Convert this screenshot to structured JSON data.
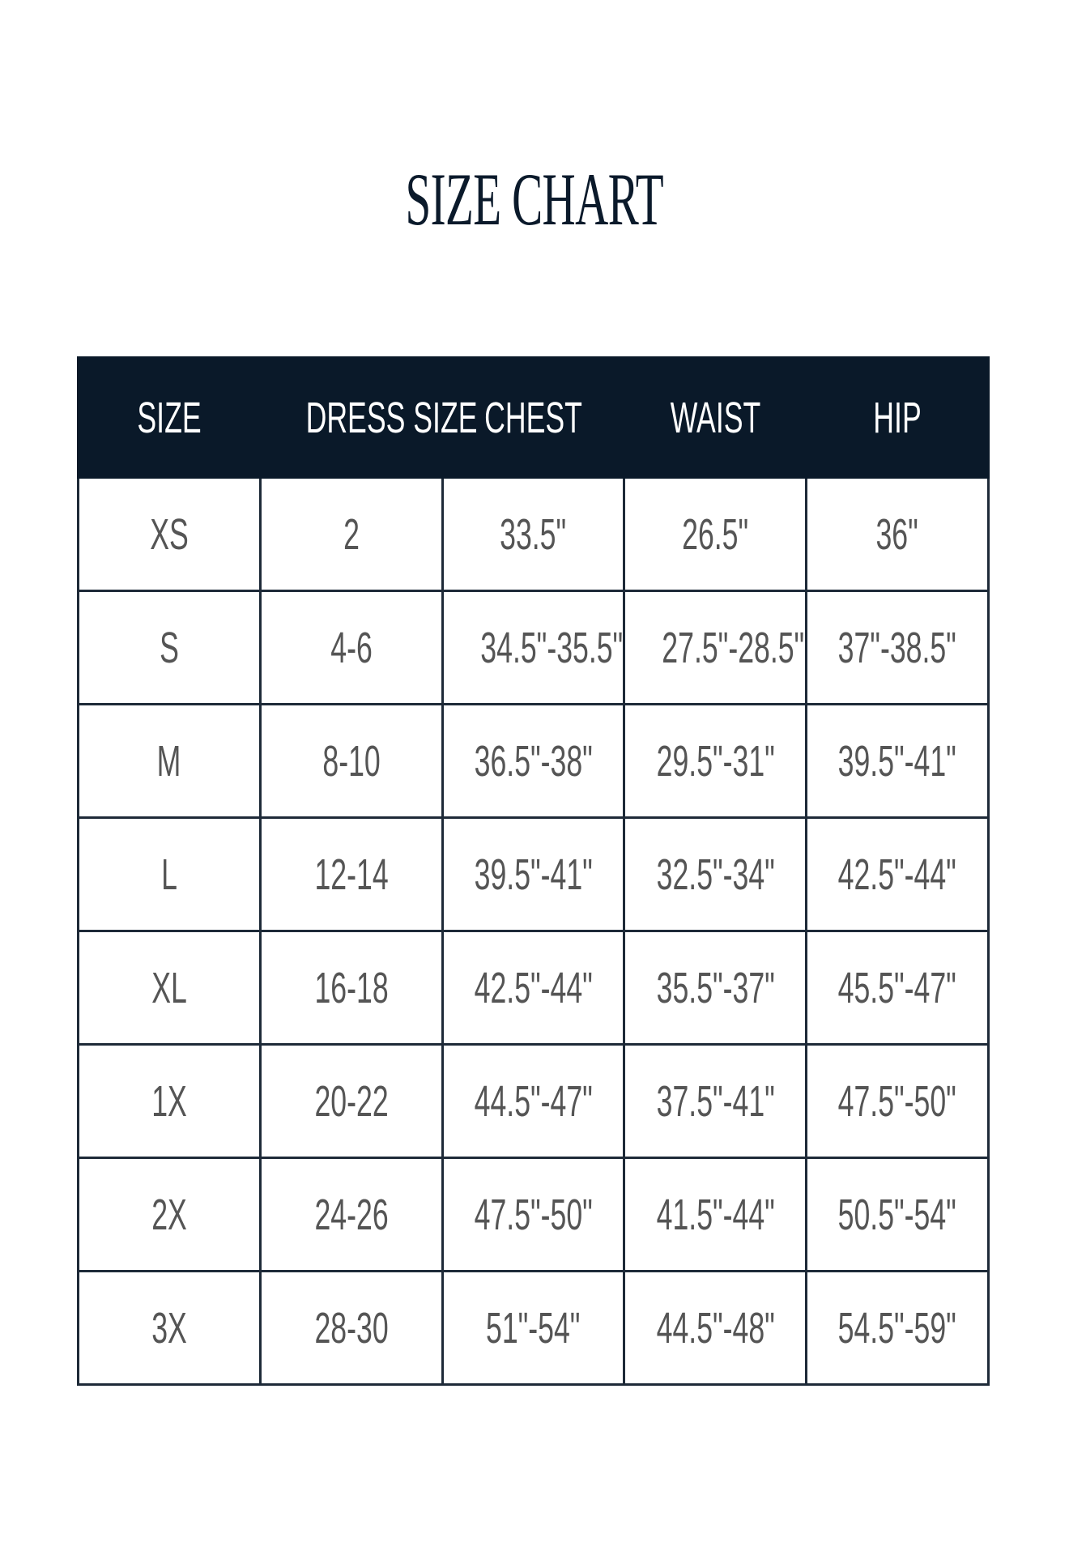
{
  "title": "SIZE CHART",
  "table": {
    "headers": [
      "SIZE",
      "DRESS SIZE",
      "CHEST",
      "WAIST",
      "HIP"
    ],
    "rows": [
      [
        "XS",
        "2",
        "33.5\"",
        "26.5\"",
        "36\""
      ],
      [
        "S",
        "4-6",
        "34.5\"-35.5\"",
        "27.5\"-28.5\"",
        "37\"-38.5\""
      ],
      [
        "M",
        "8-10",
        "36.5\"-38\"",
        "29.5\"-31\"",
        "39.5\"-41\""
      ],
      [
        "L",
        "12-14",
        "39.5\"-41\"",
        "32.5\"-34\"",
        "42.5\"-44\""
      ],
      [
        "XL",
        "16-18",
        "42.5\"-44\"",
        "35.5\"-37\"",
        "45.5\"-47\""
      ],
      [
        "1X",
        "20-22",
        "44.5\"-47\"",
        "37.5\"-41\"",
        "47.5\"-50\""
      ],
      [
        "2X",
        "24-26",
        "47.5\"-50\"",
        "41.5\"-44\"",
        "50.5\"-54\""
      ],
      [
        "3X",
        "28-30",
        "51\"-54\"",
        "44.5\"-48\"",
        "54.5\"-59\""
      ]
    ]
  },
  "colors": {
    "header_bg": "#0a1929",
    "header_text": "#ffffff",
    "cell_text": "#555555",
    "border": "#1e2a38"
  }
}
